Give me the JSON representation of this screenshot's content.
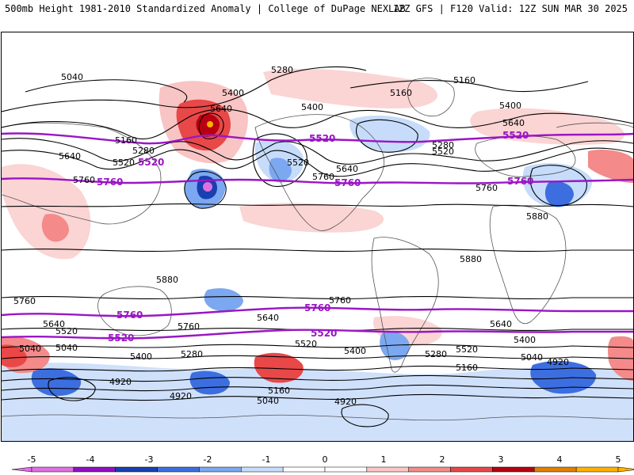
{
  "header": {
    "title_left": "500mb Height 1981-2010 Standardized Anomaly | College of DuPage NEXLAB",
    "title_right": "12Z GFS | F120 Valid: 12Z SUN MAR 30 2025"
  },
  "colors": {
    "contour": "#000000",
    "highlight_contour": "#9a16c4",
    "coast": "#555555"
  },
  "contour_labels": {
    "black": [
      "5040",
      "5280",
      "5160",
      "5400",
      "5640",
      "5160",
      "5280",
      "5520",
      "5640",
      "5760",
      "5400",
      "5160",
      "5400",
      "5640",
      "5520",
      "5280",
      "5520",
      "5640",
      "5760",
      "5760",
      "5880",
      "5880",
      "5880",
      "5760",
      "5640",
      "5520",
      "5040",
      "5400",
      "5280",
      "4920",
      "4920",
      "5760",
      "5640",
      "5520",
      "5160",
      "5040",
      "5760",
      "5640",
      "5520",
      "5400",
      "5280",
      "5160",
      "5040",
      "4920",
      "5400",
      "5040",
      "4920"
    ],
    "purple": [
      "5520",
      "5760",
      "5520",
      "5760",
      "5520",
      "5760",
      "5760",
      "5520",
      "5760",
      "5520"
    ]
  },
  "colorbar": {
    "ticks": [
      "-5",
      "-4",
      "-3",
      "-2",
      "-1",
      "0",
      "1",
      "2",
      "3",
      "4",
      "5"
    ],
    "colors": [
      "#e070e0",
      "#9010c0",
      "#1840b0",
      "#3c6ee0",
      "#7ba8f0",
      "#c6dcfa",
      "#ffffff",
      "#ffffff",
      "#fcc6c6",
      "#f48a8a",
      "#e84848",
      "#b80010",
      "#e08000",
      "#ffb000"
    ]
  }
}
